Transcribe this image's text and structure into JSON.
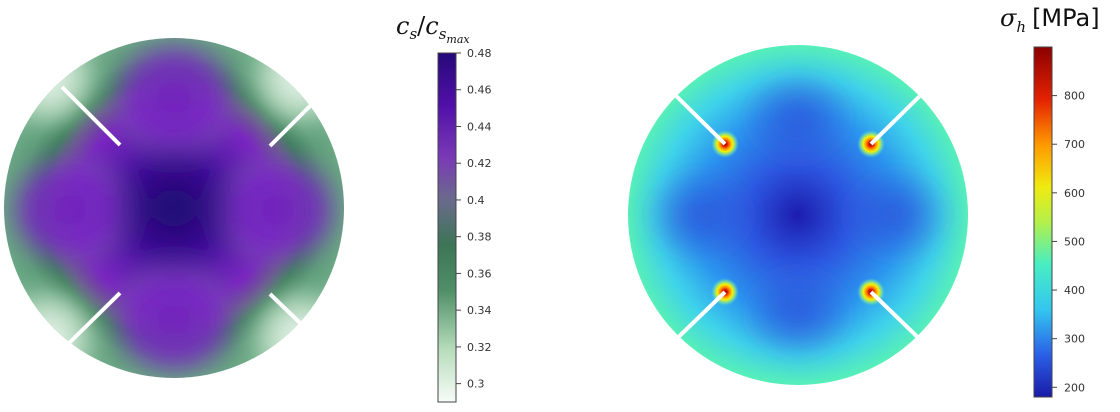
{
  "left_panel": {
    "colorbar_title_num": "c",
    "colorbar_title_num_sub": "s",
    "colorbar_title_sep": "/",
    "colorbar_title_den": "c",
    "colorbar_title_den_sub": "s",
    "colorbar_title_den_subsub": "max",
    "ticks": [
      "0.48",
      "0.46",
      "0.44",
      "0.42",
      "0.4",
      "0.38",
      "0.36",
      "0.34",
      "0.32",
      "0.3"
    ],
    "range": [
      0.29,
      0.48
    ],
    "colors": {
      "low": "#f4fbf4",
      "mid_low": "#3c7a55",
      "mid": "#7a6096",
      "high": "#26087a"
    }
  },
  "right_panel": {
    "colorbar_title_symbol": "σ",
    "colorbar_title_sub": "h",
    "colorbar_title_unit": "[MPa]",
    "ticks": [
      "800",
      "700",
      "600",
      "500",
      "400",
      "300",
      "200"
    ],
    "range": [
      180,
      900
    ],
    "colors": {
      "low": "#1b1ba8",
      "mid": "#33e6e6",
      "high": "#8b0000"
    }
  }
}
